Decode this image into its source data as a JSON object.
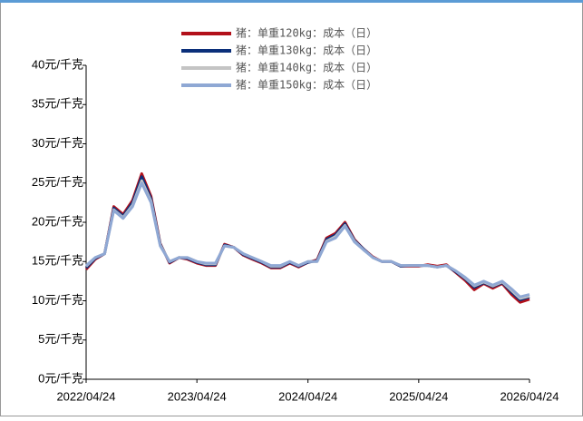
{
  "chart_data": {
    "type": "line",
    "x": [
      "2022/04/24",
      "2022/05/24",
      "2022/06/24",
      "2022/07/24",
      "2022/08/24",
      "2022/09/24",
      "2022/10/24",
      "2022/11/24",
      "2022/12/24",
      "2023/01/24",
      "2023/02/24",
      "2023/03/24",
      "2023/04/24",
      "2023/05/24",
      "2023/06/24",
      "2023/07/24",
      "2023/08/24",
      "2023/09/24",
      "2023/10/24",
      "2023/11/24",
      "2023/12/24",
      "2024/01/24",
      "2024/02/24",
      "2024/03/24",
      "2024/04/24",
      "2024/05/24",
      "2024/06/24",
      "2024/07/24",
      "2024/08/24",
      "2024/09/24",
      "2024/10/24",
      "2024/11/24",
      "2024/12/24",
      "2025/01/24",
      "2025/02/24",
      "2025/03/24",
      "2025/04/24",
      "2025/05/24",
      "2025/06/24",
      "2025/07/24",
      "2025/08/24",
      "2025/09/24",
      "2025/10/24",
      "2025/11/24",
      "2025/12/24",
      "2026/01/24",
      "2026/02/24",
      "2026/03/24",
      "2026/04/24"
    ],
    "series": [
      {
        "name": "猪：单重120kg：成本（日）",
        "color": "#b2101a",
        "values": [
          14,
          15.3,
          16,
          22,
          21,
          22.8,
          26.2,
          23.3,
          17.3,
          14.8,
          15.5,
          15.3,
          14.8,
          14.5,
          14.5,
          17.2,
          16.8,
          15.8,
          15.3,
          14.8,
          14.2,
          14.2,
          14.8,
          14.3,
          14.9,
          15.2,
          18,
          18.6,
          20,
          17.8,
          16.6,
          15.6,
          15,
          15,
          14.4,
          14.4,
          14.4,
          14.6,
          14.4,
          14.6,
          13.6,
          12.6,
          11.4,
          12.2,
          11.6,
          12.2,
          10.8,
          9.8,
          10.2
        ]
      },
      {
        "name": "猪：单重130kg：成本（日）",
        "color": "#0b2f7a",
        "values": [
          14.2,
          15.4,
          16,
          21.8,
          20.8,
          22.5,
          25.8,
          23,
          17.2,
          14.9,
          15.5,
          15.4,
          14.9,
          14.6,
          14.6,
          17.1,
          16.8,
          15.9,
          15.4,
          14.9,
          14.3,
          14.3,
          14.9,
          14.4,
          14.9,
          15.1,
          17.8,
          18.4,
          19.8,
          17.7,
          16.6,
          15.5,
          15,
          15,
          14.4,
          14.5,
          14.5,
          14.5,
          14.3,
          14.5,
          13.7,
          12.8,
          11.7,
          12.3,
          11.8,
          12.3,
          11.1,
          10.1,
          10.5
        ]
      },
      {
        "name": "猪：单重140kg：成本（日）",
        "color": "#c4c4c4",
        "values": [
          14.4,
          15.5,
          16,
          21.6,
          20.6,
          22.2,
          25.3,
          22.7,
          17.1,
          15,
          15.5,
          15.5,
          15,
          14.7,
          14.7,
          17,
          16.8,
          16,
          15.5,
          15,
          14.4,
          14.4,
          15,
          14.5,
          15,
          15,
          17.6,
          18.2,
          19.6,
          17.6,
          16.5,
          15.5,
          15,
          15,
          14.5,
          14.5,
          14.5,
          14.5,
          14.3,
          14.5,
          13.8,
          12.9,
          11.9,
          12.4,
          11.9,
          12.4,
          11.3,
          10.3,
          10.6
        ]
      },
      {
        "name": "猪：单重150kg：成本（日）",
        "color": "#8fa8d4",
        "values": [
          14.5,
          15.5,
          16,
          21.5,
          20.5,
          22,
          25,
          22.5,
          17,
          15,
          15.5,
          15.5,
          15,
          14.8,
          14.8,
          17,
          16.8,
          16,
          15.5,
          15,
          14.5,
          14.5,
          15,
          14.5,
          15,
          15,
          17.5,
          18,
          19.5,
          17.5,
          16.5,
          15.5,
          15,
          15,
          14.5,
          14.5,
          14.5,
          14.5,
          14.3,
          14.5,
          13.8,
          13,
          12,
          12.5,
          12,
          12.5,
          11.5,
          10.5,
          10.8
        ]
      }
    ],
    "xlim": [
      "2022/04/24",
      "2026/04/24"
    ],
    "xticks": [
      "2022/04/24",
      "2023/04/24",
      "2024/04/24",
      "2025/04/24",
      "2026/04/24"
    ],
    "ylim": [
      0,
      40
    ],
    "yticks": [
      {
        "value": 0,
        "label": "0元/千克"
      },
      {
        "value": 5,
        "label": "5元/千克"
      },
      {
        "value": 10,
        "label": "10元/千克"
      },
      {
        "value": 15,
        "label": "15元/千克"
      },
      {
        "value": 20,
        "label": "20元/千克"
      },
      {
        "value": 25,
        "label": "25元/千克"
      },
      {
        "value": 30,
        "label": "30元/千克"
      },
      {
        "value": 35,
        "label": "35元/千克"
      },
      {
        "value": 40,
        "label": "40元/千克"
      }
    ],
    "legend": "top"
  }
}
